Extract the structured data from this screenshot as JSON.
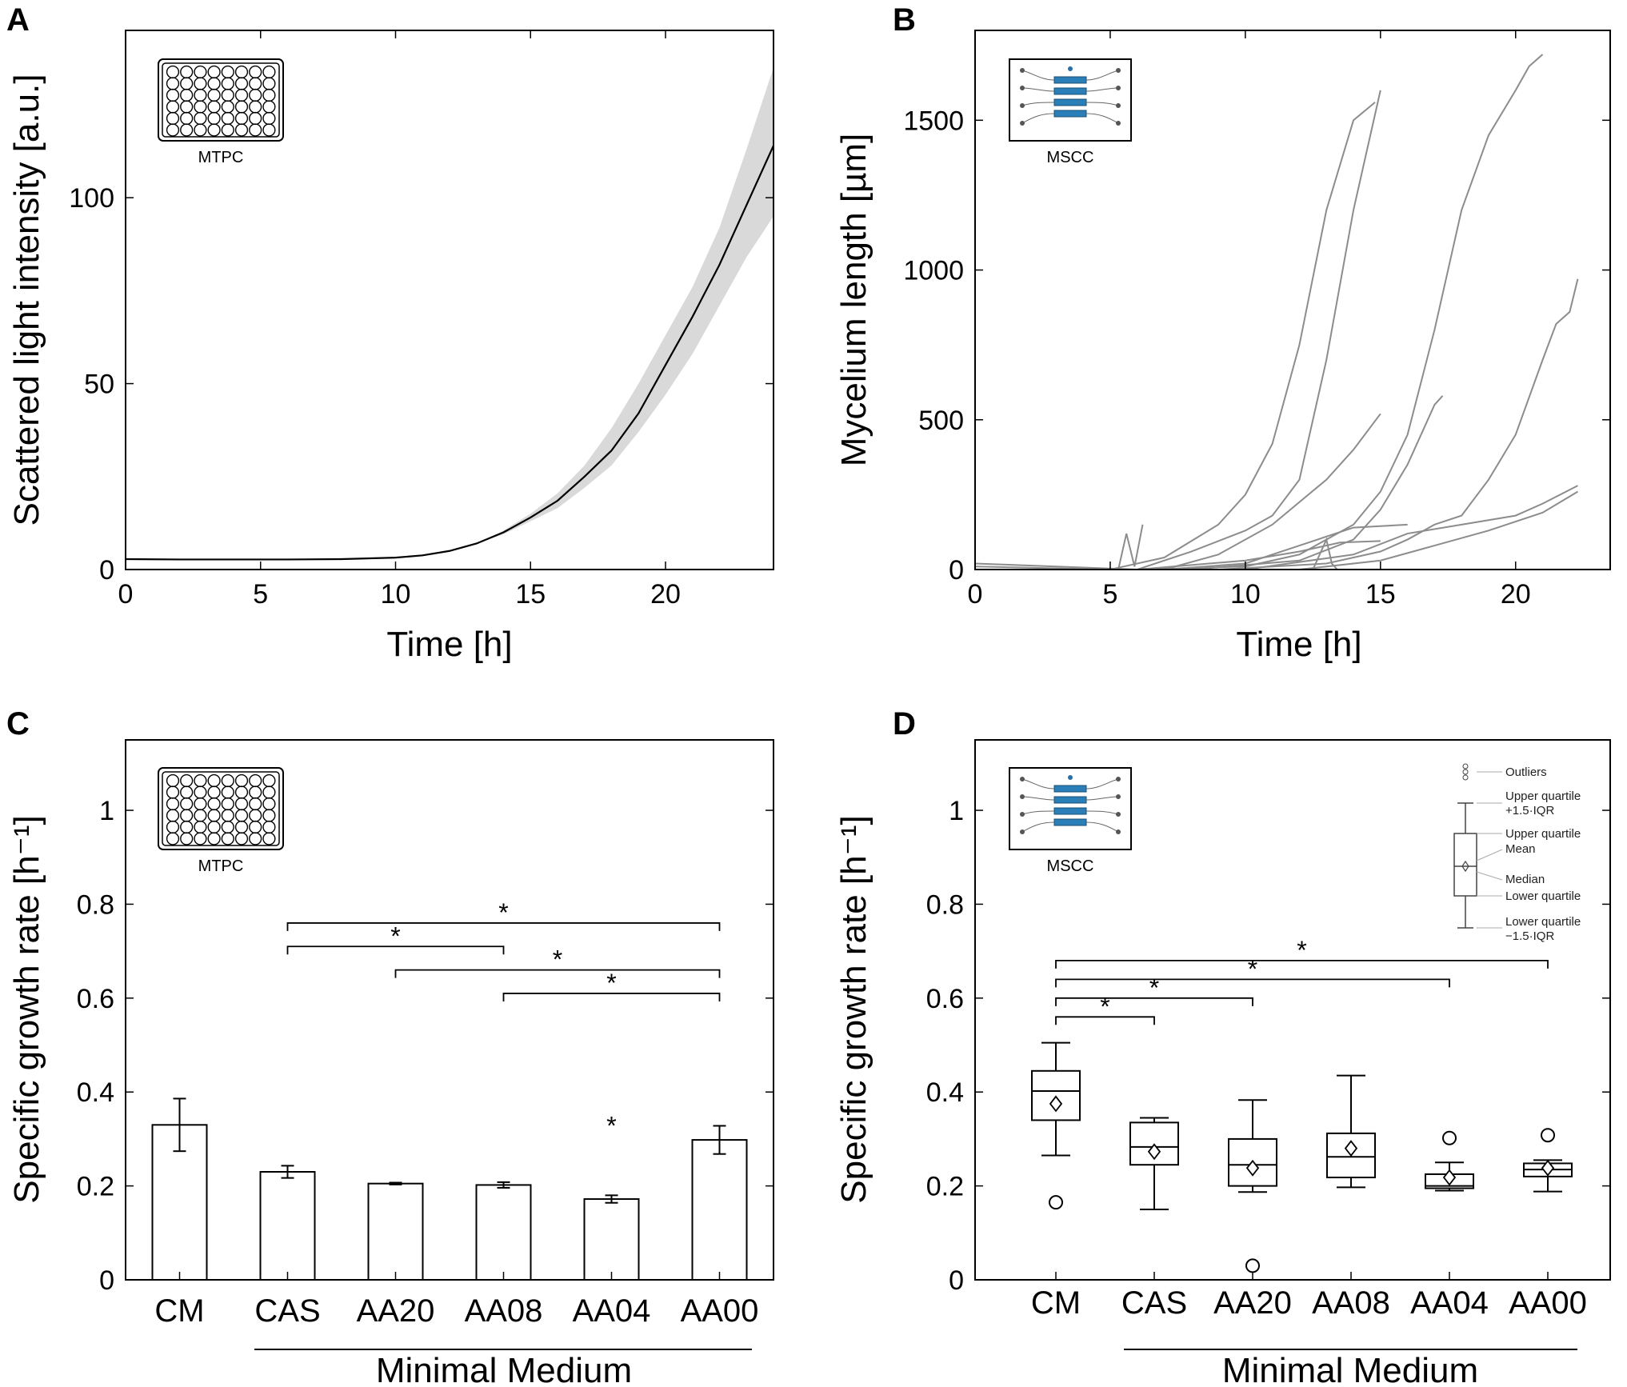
{
  "chart_data": [
    {
      "panel": "A",
      "type": "line",
      "inset_label": "MTPC",
      "xlabel": "Time [h]",
      "ylabel": "Scattered light intensity [a.u.]",
      "xlim": [
        0,
        24
      ],
      "ylim": [
        0,
        145
      ],
      "xticks": [
        0,
        5,
        10,
        15,
        20
      ],
      "yticks": [
        0,
        50,
        100
      ],
      "series": [
        {
          "name": "mean",
          "x": [
            0,
            2,
            4,
            6,
            8,
            10,
            11,
            12,
            13,
            14,
            15,
            16,
            17,
            18,
            19,
            20,
            21,
            22,
            23,
            24
          ],
          "y": [
            2.8,
            2.7,
            2.7,
            2.7,
            2.8,
            3.2,
            3.8,
            5,
            7,
            10,
            14,
            18.5,
            25,
            32,
            42,
            55,
            68,
            82,
            98,
            114
          ],
          "lower": [
            2.8,
            2.7,
            2.7,
            2.7,
            2.8,
            3.2,
            3.8,
            5,
            7,
            9.5,
            13,
            16.5,
            22,
            28,
            37,
            47,
            58,
            71,
            84,
            95
          ],
          "upper": [
            2.8,
            2.7,
            2.7,
            2.7,
            2.8,
            3.2,
            3.8,
            5,
            7,
            10.5,
            15,
            20.5,
            28,
            38,
            50,
            63,
            76,
            92,
            113,
            135
          ]
        }
      ]
    },
    {
      "panel": "B",
      "type": "line",
      "inset_label": "MSCC",
      "xlabel": "Time [h]",
      "ylabel": "Mycelium length [µm]",
      "xlim": [
        0,
        23.5
      ],
      "ylim": [
        0,
        1800
      ],
      "xticks": [
        0,
        5,
        10,
        15,
        20
      ],
      "yticks": [
        0,
        500,
        1000,
        1500
      ],
      "series": [
        {
          "name": "trace 1",
          "x": [
            0,
            5,
            7,
            9,
            10,
            11,
            12,
            13,
            14,
            14.8
          ],
          "y": [
            10,
            0,
            40,
            150,
            250,
            420,
            750,
            1200,
            1500,
            1560
          ]
        },
        {
          "name": "trace 2",
          "x": [
            0,
            6,
            8,
            10,
            11,
            12,
            13,
            14,
            15
          ],
          "y": [
            20,
            0,
            60,
            130,
            180,
            300,
            700,
            1200,
            1600
          ]
        },
        {
          "name": "trace 3",
          "x": [
            0,
            7,
            9,
            11,
            13,
            14,
            15
          ],
          "y": [
            0,
            0,
            50,
            150,
            300,
            400,
            520
          ]
        },
        {
          "name": "trace 4",
          "x": [
            6,
            10,
            12,
            14,
            15,
            16,
            17,
            18,
            19,
            20,
            20.5,
            21
          ],
          "y": [
            0,
            10,
            50,
            150,
            260,
            450,
            800,
            1200,
            1450,
            1600,
            1680,
            1720
          ]
        },
        {
          "name": "trace 5",
          "x": [
            8,
            12,
            14,
            15,
            16,
            17,
            17.3
          ],
          "y": [
            0,
            30,
            100,
            200,
            350,
            550,
            580
          ]
        },
        {
          "name": "trace 6",
          "x": [
            9,
            13,
            15,
            16,
            17,
            18,
            19,
            20,
            21,
            21.5,
            22,
            22.3
          ],
          "y": [
            0,
            20,
            60,
            100,
            150,
            180,
            300,
            450,
            700,
            820,
            860,
            970
          ]
        },
        {
          "name": "trace 7",
          "x": [
            6,
            10,
            12,
            13.5,
            15
          ],
          "y": [
            0,
            30,
            60,
            90,
            95
          ]
        },
        {
          "name": "trace 8",
          "x": [
            7,
            10,
            12,
            14,
            16
          ],
          "y": [
            0,
            20,
            80,
            140,
            150
          ]
        },
        {
          "name": "trace 9",
          "x": [
            10,
            14,
            16,
            18,
            20,
            21,
            22.3
          ],
          "y": [
            0,
            50,
            120,
            150,
            180,
            220,
            280
          ]
        },
        {
          "name": "trace 10",
          "x": [
            12,
            15,
            17,
            19,
            21,
            22.3
          ],
          "y": [
            0,
            30,
            80,
            130,
            190,
            260
          ]
        },
        {
          "name": "trace 11",
          "x": [
            5.3,
            5.6,
            5.9,
            6.2
          ],
          "y": [
            0,
            120,
            10,
            150
          ]
        },
        {
          "name": "trace 12",
          "x": [
            12.5,
            13,
            13.2,
            13.4
          ],
          "y": [
            0,
            100,
            20,
            0
          ]
        }
      ]
    },
    {
      "panel": "C",
      "type": "bar",
      "inset_label": "MTPC",
      "xlabel": "",
      "ylabel": "Specific growth rate [h⁻¹]",
      "ylim": [
        0,
        1.15
      ],
      "yticks": [
        0,
        0.2,
        0.4,
        0.6,
        0.8,
        1
      ],
      "categories": [
        "CM",
        "CAS",
        "AA20",
        "AA08",
        "AA04",
        "AA00"
      ],
      "values": [
        0.33,
        0.23,
        0.205,
        0.202,
        0.172,
        0.298
      ],
      "errors": [
        0.056,
        0.013,
        0.002,
        0.006,
        0.008,
        0.03
      ],
      "group_label": "Minimal Medium",
      "single_star_index": 4,
      "single_star_value": 0.33,
      "significance": [
        {
          "from": 1,
          "to": 5,
          "y": 0.76,
          "label": "*"
        },
        {
          "from": 1,
          "to": 3,
          "y": 0.71,
          "label": "*"
        },
        {
          "from": 2,
          "to": 5,
          "y": 0.66,
          "label": "*"
        },
        {
          "from": 3,
          "to": 5,
          "y": 0.61,
          "label": "*"
        }
      ]
    },
    {
      "panel": "D",
      "type": "box",
      "inset_label": "MSCC",
      "xlabel": "",
      "ylabel": "Specific growth rate [h⁻¹]",
      "ylim": [
        0,
        1.15
      ],
      "yticks": [
        0,
        0.2,
        0.4,
        0.6,
        0.8,
        1
      ],
      "categories": [
        "CM",
        "CAS",
        "AA20",
        "AA08",
        "AA04",
        "AA00"
      ],
      "group_label": "Minimal Medium",
      "boxes": [
        {
          "min": 0.265,
          "q1": 0.34,
          "median": 0.402,
          "q3": 0.445,
          "max": 0.505,
          "mean": 0.375,
          "outliers": [
            0.165
          ]
        },
        {
          "min": 0.15,
          "q1": 0.245,
          "median": 0.283,
          "q3": 0.335,
          "max": 0.345,
          "mean": 0.273,
          "outliers": []
        },
        {
          "min": 0.187,
          "q1": 0.2,
          "median": 0.245,
          "q3": 0.3,
          "max": 0.383,
          "mean": 0.238,
          "outliers": [
            0.03
          ]
        },
        {
          "min": 0.197,
          "q1": 0.218,
          "median": 0.262,
          "q3": 0.312,
          "max": 0.435,
          "mean": 0.28,
          "outliers": []
        },
        {
          "min": 0.19,
          "q1": 0.195,
          "median": 0.2,
          "q3": 0.225,
          "max": 0.25,
          "mean": 0.218,
          "outliers": [
            0.302
          ]
        },
        {
          "min": 0.188,
          "q1": 0.22,
          "median": 0.235,
          "q3": 0.248,
          "max": 0.255,
          "mean": 0.238,
          "outliers": [
            0.308
          ]
        }
      ],
      "significance": [
        {
          "from": 0,
          "to": 5,
          "y": 0.68,
          "label": "*"
        },
        {
          "from": 0,
          "to": 4,
          "y": 0.64,
          "label": "*"
        },
        {
          "from": 0,
          "to": 2,
          "y": 0.6,
          "label": "*"
        },
        {
          "from": 0,
          "to": 1,
          "y": 0.56,
          "label": "*"
        }
      ],
      "legend": {
        "outliers": "Outliers",
        "upper_whisker_1": "Upper quartile",
        "upper_whisker_2": "+1.5·IQR",
        "upper_quartile": "Upper quartile",
        "mean": "Mean",
        "median": "Median",
        "lower_quartile": "Lower quartile",
        "lower_whisker_1": "Lower quartile",
        "lower_whisker_2": "−1.5·IQR"
      }
    }
  ]
}
